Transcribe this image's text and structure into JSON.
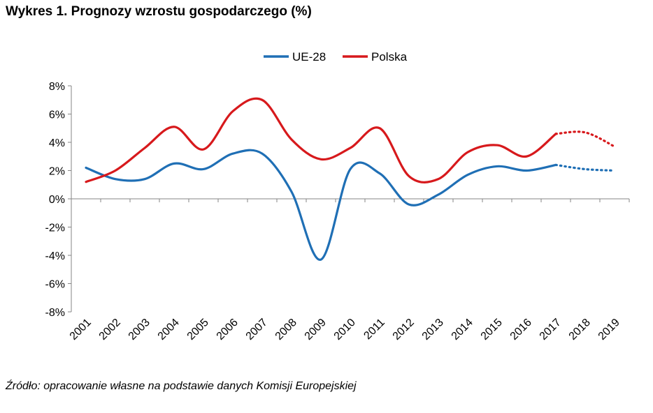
{
  "title": "Wykres 1. Prognozy wzrostu gospodarczego (%)",
  "source": "Źródło: opracowanie własne na podstawie danych Komisji Europejskiej",
  "chart_data": {
    "type": "line",
    "categories": [
      "2001",
      "2002",
      "2003",
      "2004",
      "2005",
      "2006",
      "2007",
      "2008",
      "2009",
      "2010",
      "2011",
      "2012",
      "2013",
      "2014",
      "2015",
      "2016",
      "2017",
      "2018",
      "2019"
    ],
    "series": [
      {
        "name": "UE-28",
        "color": "#1f6fb5",
        "values": [
          2.2,
          1.4,
          1.4,
          2.5,
          2.1,
          3.2,
          3.2,
          0.5,
          -4.3,
          2.1,
          1.8,
          -0.4,
          0.3,
          1.7,
          2.3,
          2.0,
          2.4,
          2.1,
          2.0
        ],
        "forecast_from_index": 16
      },
      {
        "name": "Polska",
        "color": "#d7191c",
        "values": [
          1.2,
          2.0,
          3.6,
          5.1,
          3.5,
          6.2,
          7.0,
          4.2,
          2.8,
          3.6,
          5.0,
          1.6,
          1.4,
          3.3,
          3.8,
          3.0,
          4.6,
          4.7,
          3.7
        ],
        "forecast_from_index": 16
      }
    ],
    "y_ticks": [
      "8%",
      "6%",
      "4%",
      "2%",
      "0%",
      "-2%",
      "-4%",
      "-6%",
      "-8%"
    ],
    "ylim": [
      -8,
      8
    ],
    "y_step": 2,
    "legend_position": "top-center",
    "grid": false
  }
}
